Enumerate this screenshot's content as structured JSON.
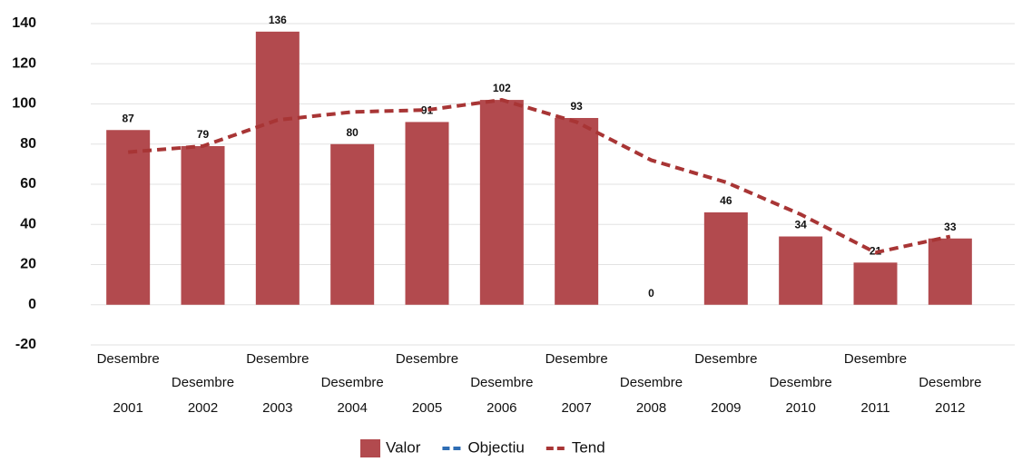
{
  "chart_data": {
    "type": "bar",
    "categories": [
      [
        "Desembre",
        "2001"
      ],
      [
        "Desembre",
        "2002"
      ],
      [
        "Desembre",
        "2003"
      ],
      [
        "Desembre",
        "2004"
      ],
      [
        "Desembre",
        "2005"
      ],
      [
        "Desembre",
        "2006"
      ],
      [
        "Desembre",
        "2007"
      ],
      [
        "Desembre",
        "2008"
      ],
      [
        "Desembre",
        "2009"
      ],
      [
        "Desembre",
        "2010"
      ],
      [
        "Desembre",
        "2011"
      ],
      [
        "Desembre",
        "2012"
      ]
    ],
    "series": [
      {
        "name": "Valor",
        "type": "bar",
        "color": "#b24a4e",
        "values": [
          87,
          79,
          136,
          80,
          91,
          102,
          93,
          0,
          46,
          34,
          21,
          33
        ]
      },
      {
        "name": "Objectiu",
        "type": "line",
        "color": "#2e6db4",
        "values": [
          null,
          null,
          null,
          null,
          null,
          null,
          null,
          null,
          null,
          null,
          null,
          null
        ]
      },
      {
        "name": "Tend",
        "type": "line",
        "color": "#a83535",
        "values": [
          76,
          79,
          92,
          96,
          97,
          102,
          91,
          72,
          61,
          45,
          26,
          34
        ]
      }
    ],
    "ylim": [
      -20,
      140
    ],
    "yticks": [
      -20,
      0,
      20,
      40,
      60,
      80,
      100,
      120,
      140
    ],
    "grid": true,
    "legend": "bottom"
  }
}
